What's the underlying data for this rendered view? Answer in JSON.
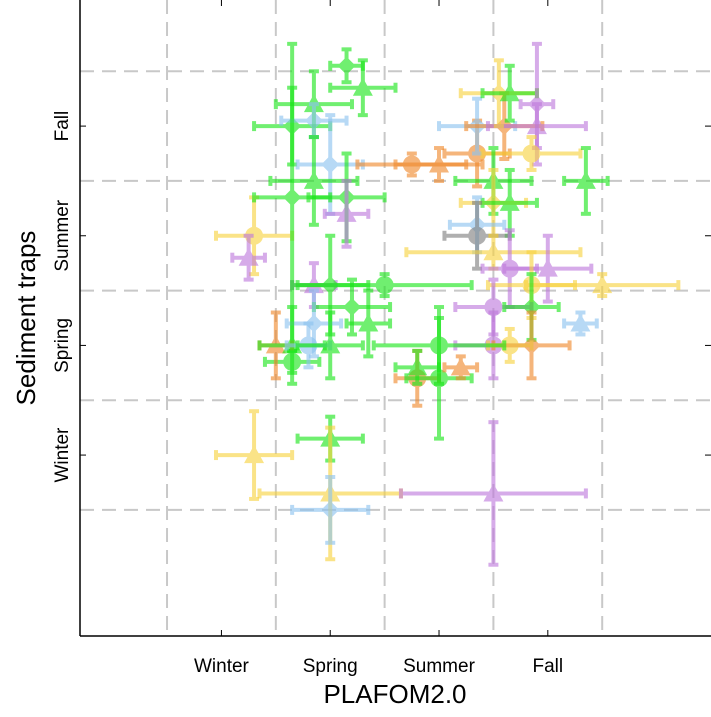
{
  "chart_data": {
    "type": "scatter",
    "title": "",
    "xlabel": "PLAFOM2.0",
    "ylabel": "Sediment traps",
    "xlim": [
      -2.3,
      3.5
    ],
    "ylim": [
      -2.65,
      3.15
    ],
    "grid": true,
    "grid_x": [
      -1.5,
      -0.5,
      0.5,
      1.5,
      2.5
    ],
    "grid_y": [
      -1.5,
      -0.5,
      0.5,
      1.5,
      2.5
    ],
    "x_ticks": [
      {
        "value": -1,
        "label": "Winter"
      },
      {
        "value": 0,
        "label": "Spring"
      },
      {
        "value": 1,
        "label": "Summer"
      },
      {
        "value": 2,
        "label": "Fall"
      }
    ],
    "y_ticks": [
      {
        "value": -1,
        "label": "Winter"
      },
      {
        "value": 0,
        "label": "Spring"
      },
      {
        "value": 1,
        "label": "Summer"
      },
      {
        "value": 2,
        "label": "Fall"
      }
    ],
    "colors": {
      "yellow": "#f7d23e",
      "orange": "#f0892b",
      "green": "#19e619",
      "blue": "#8cc3ef",
      "purple": "#be78dc",
      "gray": "#7f7f7f"
    },
    "points": [
      {
        "x": -0.35,
        "y": -0.15,
        "xerr": 0.25,
        "yerr": 0.1,
        "marker": "circle",
        "color": "green"
      },
      {
        "x": -0.7,
        "y": 1.0,
        "xerr": 0.35,
        "yerr": 0.35,
        "marker": "circle",
        "color": "yellow"
      },
      {
        "x": -0.75,
        "y": 0.8,
        "xerr": 0.15,
        "yerr": 0.2,
        "marker": "triangle",
        "color": "purple"
      },
      {
        "x": -0.7,
        "y": -1.0,
        "xerr": 0.35,
        "yerr": 0.4,
        "marker": "triangle",
        "color": "yellow"
      },
      {
        "x": 0.0,
        "y": -0.85,
        "xerr": 0.3,
        "yerr": 0.2,
        "marker": "triangle",
        "color": "green"
      },
      {
        "x": 0.0,
        "y": -1.35,
        "xerr": 0.65,
        "yerr": 0.6,
        "marker": "triangle",
        "color": "yellow"
      },
      {
        "x": 0.0,
        "y": -1.5,
        "xerr": 0.35,
        "yerr": 0.3,
        "marker": "diamond",
        "color": "blue"
      },
      {
        "x": 1.5,
        "y": -1.35,
        "xerr": 0.85,
        "yerr": 0.65,
        "marker": "triangle",
        "color": "purple"
      },
      {
        "x": 0.15,
        "y": 2.55,
        "xerr": 0.15,
        "yerr": 0.15,
        "marker": "diamond",
        "color": "green"
      },
      {
        "x": 0.3,
        "y": 2.35,
        "xerr": 0.3,
        "yerr": 0.25,
        "marker": "triangle",
        "color": "green"
      },
      {
        "x": -0.35,
        "y": 2.0,
        "xerr": 0.35,
        "yerr": 0.35,
        "marker": "diamond",
        "color": "green"
      },
      {
        "x": -0.15,
        "y": 2.2,
        "xerr": 0.35,
        "yerr": 0.3,
        "marker": "triangle",
        "color": "green"
      },
      {
        "x": -0.15,
        "y": 2.05,
        "xerr": 0.3,
        "yerr": 0.15,
        "marker": "diamond",
        "color": "blue"
      },
      {
        "x": 0.0,
        "y": 1.65,
        "xerr": 0.3,
        "yerr": 0.45,
        "marker": "diamond",
        "color": "blue"
      },
      {
        "x": -0.15,
        "y": 1.5,
        "xerr": 0.4,
        "yerr": 0.4,
        "marker": "triangle",
        "color": "green"
      },
      {
        "x": -0.35,
        "y": 1.35,
        "xerr": 0.35,
        "yerr": 1.4,
        "marker": "diamond",
        "color": "green"
      },
      {
        "x": 0.15,
        "y": 1.35,
        "xerr": 0.35,
        "yerr": 0.4,
        "marker": "diamond",
        "color": "green"
      },
      {
        "x": 0.15,
        "y": 1.2,
        "xerr": 0.2,
        "yerr": 0.3,
        "marker": "triangle",
        "color": "purple"
      },
      {
        "x": -0.15,
        "y": 0.55,
        "xerr": 0.2,
        "yerr": 0.2,
        "marker": "triangle",
        "color": "purple"
      },
      {
        "x": 0.0,
        "y": 0.55,
        "xerr": 0.35,
        "yerr": 0.45,
        "marker": "diamond",
        "color": "green"
      },
      {
        "x": 0.2,
        "y": 0.35,
        "xerr": 0.35,
        "yerr": 0.25,
        "marker": "diamond",
        "color": "green"
      },
      {
        "x": 0.35,
        "y": 0.2,
        "xerr": 0.2,
        "yerr": 0.3,
        "marker": "triangle",
        "color": "green"
      },
      {
        "x": -0.15,
        "y": 0.2,
        "xerr": 0.25,
        "yerr": 0.3,
        "marker": "diamond",
        "color": "blue"
      },
      {
        "x": -0.5,
        "y": 0.0,
        "xerr": 0.15,
        "yerr": 0.3,
        "marker": "triangle",
        "color": "orange"
      },
      {
        "x": -0.35,
        "y": 0.0,
        "xerr": 0.3,
        "yerr": 0.35,
        "marker": "triangle",
        "color": "green"
      },
      {
        "x": -0.2,
        "y": 0.0,
        "xerr": 0.2,
        "yerr": 0.2,
        "marker": "circle",
        "color": "blue"
      },
      {
        "x": 0.0,
        "y": 0.0,
        "xerr": 0.3,
        "yerr": 0.3,
        "marker": "triangle",
        "color": "green"
      },
      {
        "x": 0.5,
        "y": 0.55,
        "xerr": 0.8,
        "yerr": 0.1,
        "marker": "circle",
        "color": "green"
      },
      {
        "x": 0.75,
        "y": 1.65,
        "xerr": 0.5,
        "yerr": 0.1,
        "marker": "circle",
        "color": "orange"
      },
      {
        "x": 1.0,
        "y": 1.65,
        "xerr": 0.4,
        "yerr": 0.15,
        "marker": "triangle",
        "color": "orange"
      },
      {
        "x": 1.35,
        "y": 1.75,
        "xerr": 0.3,
        "yerr": 0.3,
        "marker": "circle",
        "color": "orange"
      },
      {
        "x": 1.35,
        "y": 2.0,
        "xerr": 0.35,
        "yerr": 0.25,
        "marker": "diamond",
        "color": "blue"
      },
      {
        "x": 1.6,
        "y": 2.0,
        "xerr": 0.35,
        "yerr": 0.3,
        "marker": "diamond",
        "color": "orange"
      },
      {
        "x": 1.9,
        "y": 2.0,
        "xerr": 0.45,
        "yerr": 0.2,
        "marker": "triangle",
        "color": "purple"
      },
      {
        "x": 1.55,
        "y": 2.3,
        "xerr": 0.35,
        "yerr": 0.3,
        "marker": "diamond",
        "color": "yellow"
      },
      {
        "x": 1.65,
        "y": 2.3,
        "xerr": 0.25,
        "yerr": 0.25,
        "marker": "triangle",
        "color": "green"
      },
      {
        "x": 1.9,
        "y": 2.2,
        "xerr": 0.15,
        "yerr": 0.55,
        "marker": "diamond",
        "color": "purple"
      },
      {
        "x": 1.85,
        "y": 1.75,
        "xerr": 0.45,
        "yerr": 0.15,
        "marker": "circle",
        "color": "yellow"
      },
      {
        "x": 2.35,
        "y": 1.5,
        "xerr": 0.2,
        "yerr": 0.3,
        "marker": "triangle",
        "color": "green"
      },
      {
        "x": 1.5,
        "y": 1.5,
        "xerr": 0.35,
        "yerr": 0.3,
        "marker": "triangle",
        "color": "green"
      },
      {
        "x": 1.5,
        "y": 1.3,
        "xerr": 0.3,
        "yerr": 0.3,
        "marker": "diamond",
        "color": "yellow"
      },
      {
        "x": 1.65,
        "y": 1.3,
        "xerr": 0.25,
        "yerr": 0.3,
        "marker": "triangle",
        "color": "green"
      },
      {
        "x": 1.35,
        "y": 1.1,
        "xerr": 0.25,
        "yerr": 0.25,
        "marker": "diamond",
        "color": "blue"
      },
      {
        "x": 1.35,
        "y": 1.0,
        "xerr": 0.3,
        "yerr": 0.3,
        "marker": "circle",
        "color": "gray"
      },
      {
        "x": 1.5,
        "y": 0.85,
        "xerr": 0.8,
        "yerr": 0.15,
        "marker": "triangle",
        "color": "yellow"
      },
      {
        "x": 1.65,
        "y": 0.7,
        "xerr": 0.25,
        "yerr": 0.35,
        "marker": "circle",
        "color": "purple"
      },
      {
        "x": 2.0,
        "y": 0.7,
        "xerr": 0.4,
        "yerr": 0.3,
        "marker": "triangle",
        "color": "purple"
      },
      {
        "x": 1.85,
        "y": 0.55,
        "xerr": 0.4,
        "yerr": 0.3,
        "marker": "circle",
        "color": "yellow"
      },
      {
        "x": 2.5,
        "y": 0.55,
        "xerr": 0.7,
        "yerr": 0.1,
        "marker": "triangle",
        "color": "yellow"
      },
      {
        "x": 1.5,
        "y": 0.35,
        "xerr": 0.35,
        "yerr": 0.25,
        "marker": "circle",
        "color": "purple"
      },
      {
        "x": 1.85,
        "y": 0.35,
        "xerr": 0.25,
        "yerr": 0.3,
        "marker": "diamond",
        "color": "green"
      },
      {
        "x": 2.3,
        "y": 0.2,
        "xerr": 0.15,
        "yerr": 0.1,
        "marker": "triangle",
        "color": "blue"
      },
      {
        "x": 1.5,
        "y": 0.0,
        "xerr": 0.35,
        "yerr": 0.3,
        "marker": "circle",
        "color": "purple"
      },
      {
        "x": 1.85,
        "y": 0.0,
        "xerr": 0.35,
        "yerr": 0.3,
        "marker": "diamond",
        "color": "orange"
      },
      {
        "x": 1.65,
        "y": 0.0,
        "xerr": 0.2,
        "yerr": 0.15,
        "marker": "circle",
        "color": "yellow"
      },
      {
        "x": 0.8,
        "y": -0.3,
        "xerr": 0.2,
        "yerr": 0.25,
        "marker": "circle",
        "color": "orange"
      },
      {
        "x": 0.8,
        "y": -0.2,
        "xerr": 0.2,
        "yerr": 0.15,
        "marker": "triangle",
        "color": "green"
      },
      {
        "x": 1.0,
        "y": 0.0,
        "xerr": 0.6,
        "yerr": 0.35,
        "marker": "circle",
        "color": "green"
      },
      {
        "x": 1.0,
        "y": -0.3,
        "xerr": 0.3,
        "yerr": 0.55,
        "marker": "circle",
        "color": "green"
      },
      {
        "x": 1.2,
        "y": -0.2,
        "xerr": 0.15,
        "yerr": 0.1,
        "marker": "triangle",
        "color": "orange"
      }
    ]
  }
}
